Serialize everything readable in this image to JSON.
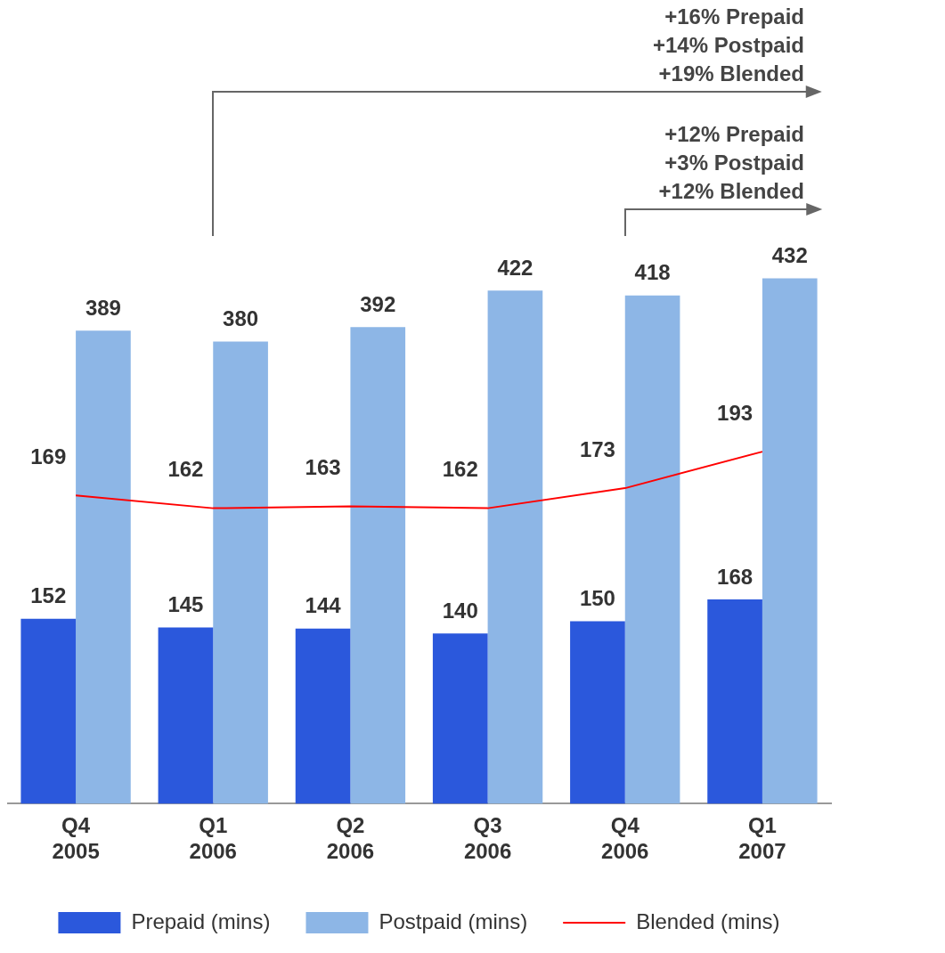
{
  "chart_data": {
    "type": "bar",
    "categories": [
      "Q4 2005",
      "Q1 2006",
      "Q2 2006",
      "Q3 2006",
      "Q4 2006",
      "Q1 2007"
    ],
    "series": [
      {
        "name": "Prepaid (mins)",
        "color": "#2b58dc",
        "values": [
          152,
          145,
          144,
          140,
          150,
          168
        ]
      },
      {
        "name": "Postpaid (mins)",
        "color": "#8db6e6",
        "values": [
          389,
          380,
          392,
          422,
          418,
          432
        ]
      },
      {
        "name": "Blended (mins)",
        "type": "line",
        "axis": "y2",
        "color": "#ff0000",
        "values": [
          169,
          162,
          163,
          162,
          173,
          193
        ]
      }
    ],
    "annotations": [
      "+16% Prepaid\n+14% Postpaid\n+19% Blended",
      "+12% Prepaid\n+3% Postpaid\n+12% Blended"
    ],
    "data_labels": true,
    "tick_labels": "x",
    "legend": "bottom",
    "grid": false,
    "marker": "none"
  }
}
